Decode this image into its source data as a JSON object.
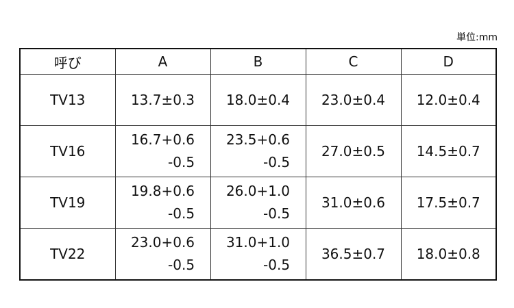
{
  "unit": "単位:mm",
  "table": {
    "header": [
      "呼び",
      "A",
      "B",
      "C",
      "D"
    ],
    "rows": [
      [
        "TV13",
        [
          "13.7±0.3"
        ],
        [
          "18.0±0.4"
        ],
        [
          "23.0±0.4"
        ],
        [
          "12.0±0.4"
        ]
      ],
      [
        "TV16",
        [
          "16.7+0.6",
          "-0.5"
        ],
        [
          "23.5+0.6",
          "-0.5"
        ],
        [
          "27.0±0.5"
        ],
        [
          "14.5±0.7"
        ]
      ],
      [
        "TV19",
        [
          "19.8+0.6",
          "-0.5"
        ],
        [
          "26.0+1.0",
          "-0.5"
        ],
        [
          "31.0±0.6"
        ],
        [
          "17.5±0.7"
        ]
      ],
      [
        "TV22",
        [
          "23.0+0.6",
          "-0.5"
        ],
        [
          "31.0+1.0",
          "-0.5"
        ],
        [
          "36.5±0.7"
        ],
        [
          "18.0±0.8"
        ]
      ]
    ]
  }
}
